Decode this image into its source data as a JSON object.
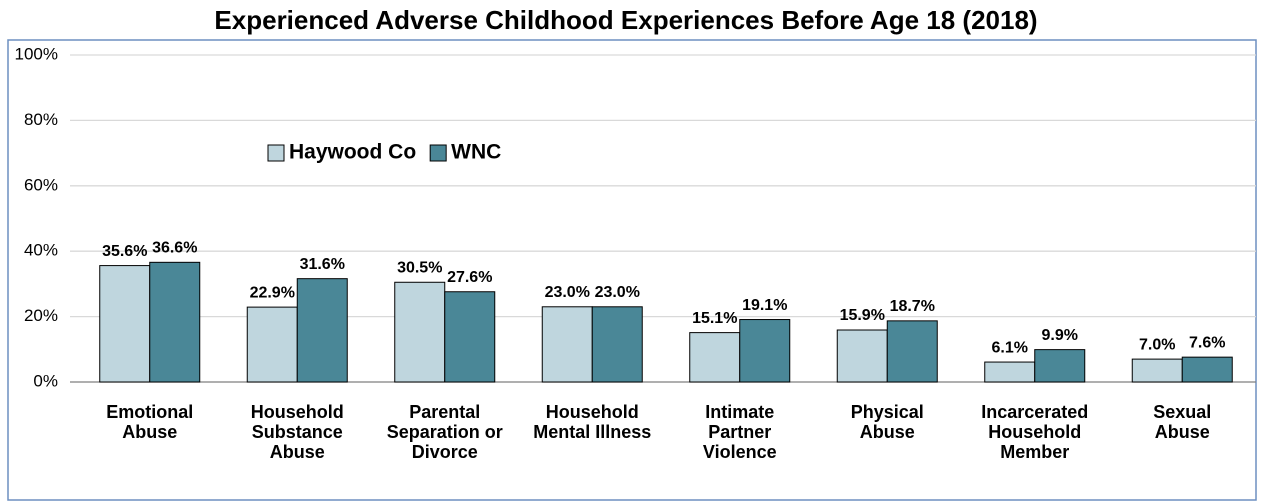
{
  "chart_data": {
    "type": "bar",
    "title": "Experienced Adverse Childhood Experiences Before Age 18 (2018)",
    "categories": [
      [
        "Emotional",
        "Abuse"
      ],
      [
        "Household",
        "Substance",
        "Abuse"
      ],
      [
        "Parental",
        "Separation or",
        "Divorce"
      ],
      [
        "Household",
        "Mental Illness"
      ],
      [
        "Intimate",
        "Partner",
        "Violence"
      ],
      [
        "Physical",
        "Abuse"
      ],
      [
        "Incarcerated",
        "Household",
        "Member"
      ],
      [
        "Sexual",
        "Abuse"
      ]
    ],
    "series": [
      {
        "name": "Haywood Co",
        "color": "#bfd6de",
        "values": [
          35.6,
          22.9,
          30.5,
          23.0,
          15.1,
          15.9,
          6.1,
          7.0
        ],
        "value_labels": [
          "35.6%",
          "22.9%",
          "30.5%",
          "23.0%",
          "15.1%",
          "15.9%",
          "6.1%",
          "7.0%"
        ]
      },
      {
        "name": "WNC",
        "color": "#4a8797",
        "values": [
          36.6,
          31.6,
          27.6,
          23.0,
          19.1,
          18.7,
          9.9,
          7.6
        ],
        "value_labels": [
          "36.6%",
          "31.6%",
          "27.6%",
          "23.0%",
          "19.1%",
          "18.7%",
          "9.9%",
          "7.6%"
        ]
      }
    ],
    "ylim": [
      0,
      100
    ],
    "yticks": [
      {
        "value": 0,
        "label": "0%"
      },
      {
        "value": 20,
        "label": "20%"
      },
      {
        "value": 40,
        "label": "40%"
      },
      {
        "value": 60,
        "label": "60%"
      },
      {
        "value": 80,
        "label": "80%"
      },
      {
        "value": 100,
        "label": "100%"
      }
    ],
    "grid": true,
    "legend": "upper left"
  }
}
